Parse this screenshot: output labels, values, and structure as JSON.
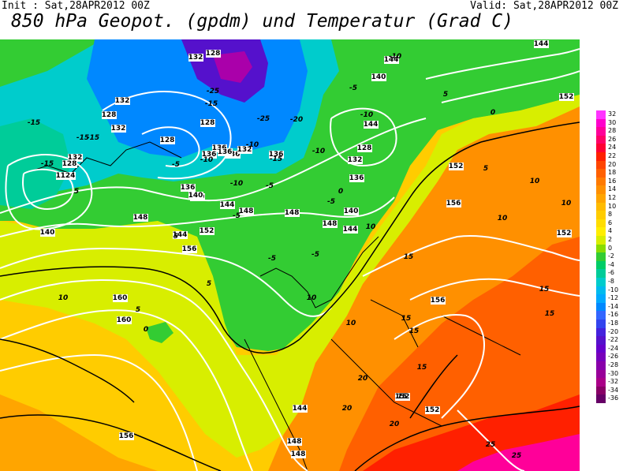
{
  "header": {
    "init": "Init : Sat,28APR2012 00Z",
    "valid": "Valid: Sat,28APR2012 00Z",
    "title": "850 hPa Geopot. (gpdm) und Temperatur (Grad C)"
  },
  "colorbar": {
    "labels": [
      "32",
      "30",
      "28",
      "26",
      "24",
      "22",
      "20",
      "18",
      "16",
      "14",
      "12",
      "10",
      "8",
      "6",
      "4",
      "2",
      "0",
      "-2",
      "-4",
      "-6",
      "-8",
      "-10",
      "-12",
      "-14",
      "-16",
      "-18",
      "-20",
      "-22",
      "-24",
      "-26",
      "-28",
      "-30",
      "-32",
      "-34",
      "-36"
    ],
    "colors": [
      "#ff33ff",
      "#ff00cc",
      "#ff0099",
      "#ff0066",
      "#ff0033",
      "#ff2000",
      "#ff4500",
      "#ff6000",
      "#ff7a00",
      "#ff9000",
      "#ffa500",
      "#ffbb00",
      "#ffcc00",
      "#ffdd00",
      "#ffee00",
      "#d8ee00",
      "#88dd00",
      "#33cc33",
      "#00cc66",
      "#00cc99",
      "#00cccc",
      "#00bbee",
      "#00aaff",
      "#0088ff",
      "#3366ff",
      "#3344ee",
      "#4422dd",
      "#5511cc",
      "#6600cc",
      "#7700bb",
      "#8800aa",
      "#990099",
      "#aa0088",
      "#880066",
      "#660066"
    ]
  },
  "map": {
    "geopotential_labels": [
      {
        "text": "132"
      },
      {
        "text": "132"
      },
      {
        "text": "128"
      },
      {
        "text": "136"
      },
      {
        "text": "128"
      },
      {
        "text": "124"
      },
      {
        "text": "128"
      },
      {
        "text": "136"
      },
      {
        "text": "132"
      },
      {
        "text": "136"
      },
      {
        "text": "140"
      },
      {
        "text": "144"
      },
      {
        "text": "148"
      },
      {
        "text": "148"
      },
      {
        "text": "152"
      },
      {
        "text": "156"
      },
      {
        "text": "160"
      },
      {
        "text": "160"
      },
      {
        "text": "156"
      },
      {
        "text": "144"
      },
      {
        "text": "148"
      },
      {
        "text": "148"
      },
      {
        "text": "152"
      },
      {
        "text": "152"
      },
      {
        "text": "152"
      },
      {
        "text": "156"
      },
      {
        "text": "156"
      },
      {
        "text": "144"
      },
      {
        "text": "140"
      },
      {
        "text": "144"
      },
      {
        "text": "128"
      },
      {
        "text": "132"
      },
      {
        "text": "136"
      },
      {
        "text": "140"
      },
      {
        "text": "148"
      },
      {
        "text": "144"
      },
      {
        "text": "144"
      },
      {
        "text": "152"
      },
      {
        "text": "140"
      },
      {
        "text": "132"
      },
      {
        "text": "128"
      },
      {
        "text": "132"
      },
      {
        "text": "136"
      },
      {
        "text": "136"
      },
      {
        "text": "136"
      },
      {
        "text": "140"
      },
      {
        "text": "148"
      },
      {
        "text": "152"
      },
      {
        "text": "144"
      },
      {
        "text": "124"
      },
      {
        "text": "128"
      }
    ],
    "temperature_labels": [
      {
        "text": "-25"
      },
      {
        "text": "-25"
      },
      {
        "text": "-15"
      },
      {
        "text": "-15"
      },
      {
        "text": "-20"
      },
      {
        "text": "-10"
      },
      {
        "text": "-10"
      },
      {
        "text": "-5"
      },
      {
        "text": "-10"
      },
      {
        "text": "-15"
      },
      {
        "text": "-10"
      },
      {
        "text": "-5"
      },
      {
        "text": "-5"
      },
      {
        "text": "-5"
      },
      {
        "text": "-5"
      },
      {
        "text": "0"
      },
      {
        "text": "0"
      },
      {
        "text": "5"
      },
      {
        "text": "5"
      },
      {
        "text": "5"
      },
      {
        "text": "10"
      },
      {
        "text": "10"
      },
      {
        "text": "10"
      },
      {
        "text": "15"
      },
      {
        "text": "15"
      },
      {
        "text": "15"
      },
      {
        "text": "15"
      },
      {
        "text": "20"
      },
      {
        "text": "20"
      },
      {
        "text": "20"
      },
      {
        "text": "25"
      },
      {
        "text": "25"
      },
      {
        "text": "10"
      },
      {
        "text": "10"
      },
      {
        "text": "10"
      },
      {
        "text": "5"
      },
      {
        "text": "5"
      },
      {
        "text": "0"
      },
      {
        "text": "-5"
      },
      {
        "text": "-10"
      },
      {
        "text": "-15"
      },
      {
        "text": "-15"
      },
      {
        "text": "-15"
      },
      {
        "text": "-10"
      },
      {
        "text": "-5"
      },
      {
        "text": "10"
      },
      {
        "text": "15"
      },
      {
        "text": "15"
      },
      {
        "text": "15"
      },
      {
        "text": "5"
      }
    ]
  }
}
